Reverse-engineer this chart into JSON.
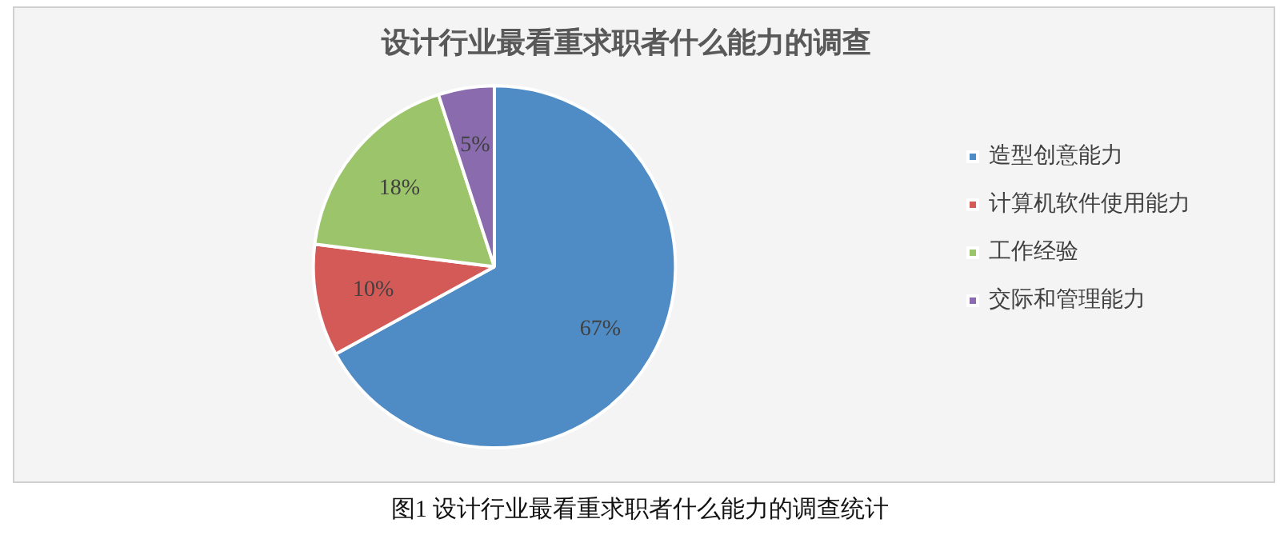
{
  "chart_data": {
    "type": "pie",
    "title": "设计行业最看重求职者什么能力的调查",
    "categories": [
      "造型创意能力",
      "计算机软件使用能力",
      "工作经验",
      "交际和管理能力"
    ],
    "values": [
      67,
      10,
      18,
      5
    ],
    "colors": [
      "#4f8bc4",
      "#d45a58",
      "#9cc46a",
      "#8a6bae"
    ],
    "value_labels": [
      "67%",
      "10%",
      "18%",
      "5%"
    ],
    "legend": "right",
    "annotations": [
      "图1 设计行业最看重求职者什么能力的调查统计"
    ]
  }
}
